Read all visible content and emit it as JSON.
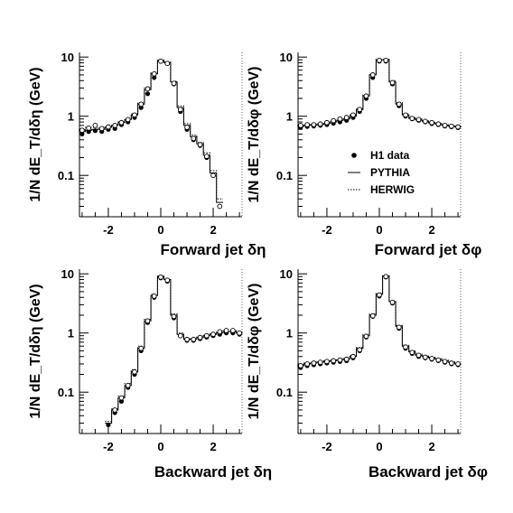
{
  "chart_data": [
    {
      "type": "scatter",
      "panel": "top-left",
      "xlabel": "Forward jet δη",
      "ylabel": "1/N dE_T/dδη (GeV)",
      "ylog": true,
      "xlim": [
        -3.1,
        3.1
      ],
      "ylim": [
        0.02,
        12
      ],
      "xticks": [
        -2,
        0,
        2
      ],
      "yticks": [
        0.1,
        1,
        10
      ],
      "x": [
        -3.0,
        -2.75,
        -2.5,
        -2.25,
        -2.0,
        -1.75,
        -1.5,
        -1.25,
        -1.0,
        -0.75,
        -0.5,
        -0.25,
        0.0,
        0.25,
        0.5,
        0.75,
        1.0,
        1.25,
        1.5,
        1.75,
        2.0,
        2.25,
        2.5
      ],
      "series": [
        {
          "name": "H1 data",
          "style": "filled-circle",
          "values": [
            0.5,
            0.55,
            0.57,
            0.55,
            0.6,
            0.62,
            0.72,
            0.8,
            0.95,
            1.4,
            2.4,
            4.5,
            8.5,
            7.8,
            3.5,
            1.2,
            0.6,
            0.4,
            0.32,
            0.2,
            0.1,
            0.03,
            null
          ]
        },
        {
          "name": "PYTHIA",
          "style": "solid-step",
          "values": [
            0.55,
            0.58,
            0.6,
            0.6,
            0.65,
            0.7,
            0.78,
            0.88,
            1.05,
            1.6,
            2.8,
            5.2,
            8.8,
            8.0,
            3.8,
            1.4,
            0.7,
            0.45,
            0.34,
            0.22,
            0.11,
            0.035,
            null
          ]
        },
        {
          "name": "HERWIG",
          "style": "dotted-step",
          "values": [
            0.6,
            0.65,
            0.65,
            0.62,
            0.68,
            0.72,
            0.8,
            0.9,
            1.1,
            1.7,
            3.0,
            5.5,
            9.0,
            8.2,
            3.9,
            1.5,
            0.75,
            0.48,
            0.36,
            0.24,
            0.12,
            0.04,
            null
          ]
        },
        {
          "name": "open",
          "style": "open-circle",
          "values": [
            0.58,
            0.63,
            0.7,
            0.62,
            0.66,
            0.7,
            0.78,
            0.88,
            1.05,
            1.6,
            2.9,
            5.2,
            8.5,
            7.8,
            3.6,
            1.3,
            0.65,
            0.42,
            0.33,
            0.21,
            0.1,
            0.03,
            null
          ]
        }
      ]
    },
    {
      "type": "scatter",
      "panel": "top-right",
      "xlabel": "Forward jet δφ",
      "ylabel": "1/N dE_T/dδφ (GeV)",
      "ylog": true,
      "xlim": [
        -3.1,
        3.1
      ],
      "ylim": [
        0.02,
        12
      ],
      "xticks": [
        -2,
        0,
        2
      ],
      "yticks": [
        0.1,
        1,
        10
      ],
      "x": [
        -3.0,
        -2.75,
        -2.5,
        -2.25,
        -2.0,
        -1.75,
        -1.5,
        -1.25,
        -1.0,
        -0.75,
        -0.5,
        -0.25,
        0.0,
        0.25,
        0.5,
        0.75,
        1.0,
        1.25,
        1.5,
        1.75,
        2.0,
        2.25,
        2.5,
        2.75,
        3.0
      ],
      "series": [
        {
          "name": "H1 data",
          "style": "filled-circle",
          "values": [
            0.65,
            0.67,
            0.68,
            0.7,
            0.72,
            0.76,
            0.8,
            0.85,
            0.95,
            1.2,
            2.0,
            4.5,
            8.5,
            8.5,
            3.5,
            1.5,
            1.0,
            0.9,
            0.85,
            0.8,
            0.75,
            0.72,
            0.68,
            0.66,
            0.64
          ]
        },
        {
          "name": "PYTHIA",
          "style": "solid-step",
          "values": [
            0.68,
            0.7,
            0.7,
            0.72,
            0.75,
            0.8,
            0.85,
            0.9,
            1.0,
            1.3,
            2.2,
            5.0,
            9.0,
            9.0,
            3.8,
            1.6,
            1.05,
            0.92,
            0.87,
            0.82,
            0.77,
            0.74,
            0.7,
            0.68,
            0.66
          ]
        },
        {
          "name": "HERWIG",
          "style": "dotted-step",
          "values": [
            0.7,
            0.72,
            0.73,
            0.75,
            0.78,
            0.82,
            0.88,
            0.93,
            1.05,
            1.35,
            2.3,
            5.2,
            9.2,
            9.2,
            4.0,
            1.7,
            1.1,
            0.95,
            0.9,
            0.84,
            0.79,
            0.75,
            0.72,
            0.7,
            0.68
          ]
        },
        {
          "name": "open",
          "style": "open-circle",
          "values": [
            0.7,
            0.72,
            0.72,
            0.74,
            0.78,
            0.84,
            0.9,
            0.95,
            1.05,
            1.3,
            2.2,
            5.0,
            8.8,
            8.8,
            3.7,
            1.6,
            1.05,
            0.92,
            0.88,
            0.82,
            0.78,
            0.74,
            0.7,
            0.68,
            0.66
          ]
        }
      ],
      "legend": {
        "position": "center-right",
        "entries": [
          "H1 data",
          "PYTHIA",
          "HERWIG"
        ]
      }
    },
    {
      "type": "scatter",
      "panel": "bottom-left",
      "xlabel": "Backward jet δη",
      "ylabel": "1/N dE_T/dδη (GeV)",
      "ylog": true,
      "xlim": [
        -3.1,
        3.1
      ],
      "ylim": [
        0.02,
        12
      ],
      "xticks": [
        -2,
        0,
        2
      ],
      "yticks": [
        0.1,
        1,
        10
      ],
      "x": [
        -2.0,
        -1.75,
        -1.5,
        -1.25,
        -1.0,
        -0.75,
        -0.5,
        -0.25,
        0.0,
        0.25,
        0.5,
        0.75,
        1.0,
        1.25,
        1.5,
        1.75,
        2.0,
        2.25,
        2.5,
        2.75,
        3.0
      ],
      "series": [
        {
          "name": "H1 data",
          "style": "filled-circle",
          "values": [
            0.028,
            0.045,
            0.07,
            0.12,
            0.2,
            0.5,
            1.5,
            4.0,
            8.5,
            7.5,
            1.8,
            0.9,
            0.75,
            0.75,
            0.8,
            0.85,
            0.9,
            0.95,
            1.0,
            1.0,
            0.95
          ]
        },
        {
          "name": "PYTHIA",
          "style": "solid-step",
          "values": [
            0.03,
            0.05,
            0.08,
            0.13,
            0.22,
            0.55,
            1.6,
            4.3,
            9.0,
            8.0,
            2.0,
            0.95,
            0.78,
            0.78,
            0.84,
            0.9,
            0.95,
            1.0,
            1.05,
            1.05,
            1.0
          ]
        },
        {
          "name": "HERWIG",
          "style": "dotted-step",
          "values": [
            0.032,
            0.052,
            0.085,
            0.14,
            0.24,
            0.6,
            1.7,
            4.5,
            9.2,
            8.2,
            2.1,
            1.0,
            0.8,
            0.8,
            0.86,
            0.92,
            0.97,
            1.05,
            1.1,
            1.1,
            1.05
          ]
        },
        {
          "name": "open",
          "style": "open-circle",
          "values": [
            null,
            0.05,
            0.08,
            0.13,
            0.22,
            0.55,
            1.6,
            4.2,
            8.8,
            7.8,
            1.9,
            0.9,
            0.78,
            0.78,
            0.84,
            0.9,
            0.95,
            1.05,
            1.1,
            1.1,
            1.0
          ]
        }
      ]
    },
    {
      "type": "scatter",
      "panel": "bottom-right",
      "xlabel": "Backward jet δφ",
      "ylabel": "1/N dE_T/dδφ (GeV)",
      "ylog": true,
      "xlim": [
        -3.1,
        3.1
      ],
      "ylim": [
        0.02,
        12
      ],
      "xticks": [
        -2,
        0,
        2
      ],
      "yticks": [
        0.1,
        1,
        10
      ],
      "x": [
        -3.0,
        -2.75,
        -2.5,
        -2.25,
        -2.0,
        -1.75,
        -1.5,
        -1.25,
        -1.0,
        -0.75,
        -0.5,
        -0.25,
        0.0,
        0.25,
        0.5,
        0.75,
        1.0,
        1.25,
        1.5,
        1.75,
        2.0,
        2.25,
        2.5,
        2.75,
        3.0
      ],
      "series": [
        {
          "name": "H1 data",
          "style": "filled-circle",
          "values": [
            0.26,
            0.28,
            0.29,
            0.3,
            0.31,
            0.32,
            0.33,
            0.34,
            0.38,
            0.5,
            0.85,
            1.9,
            4.2,
            8.8,
            3.2,
            1.2,
            0.55,
            0.45,
            0.4,
            0.38,
            0.36,
            0.34,
            0.32,
            0.3,
            0.29
          ]
        },
        {
          "name": "PYTHIA",
          "style": "solid-step",
          "values": [
            0.28,
            0.3,
            0.31,
            0.32,
            0.33,
            0.34,
            0.35,
            0.36,
            0.4,
            0.55,
            0.9,
            2.0,
            4.5,
            9.2,
            3.4,
            1.3,
            0.6,
            0.48,
            0.42,
            0.4,
            0.38,
            0.36,
            0.34,
            0.32,
            0.3
          ]
        },
        {
          "name": "HERWIG",
          "style": "dotted-step",
          "values": [
            0.29,
            0.31,
            0.32,
            0.33,
            0.34,
            0.35,
            0.36,
            0.38,
            0.42,
            0.57,
            0.95,
            2.1,
            4.7,
            9.5,
            3.5,
            1.35,
            0.62,
            0.5,
            0.44,
            0.41,
            0.39,
            0.37,
            0.35,
            0.33,
            0.31
          ]
        },
        {
          "name": "open",
          "style": "open-circle",
          "values": [
            0.28,
            0.3,
            0.31,
            0.32,
            0.33,
            0.34,
            0.35,
            0.36,
            0.4,
            0.52,
            0.88,
            1.95,
            4.4,
            9.0,
            3.3,
            1.25,
            0.58,
            0.47,
            0.42,
            0.39,
            0.37,
            0.35,
            0.33,
            0.31,
            0.3
          ]
        }
      ]
    }
  ]
}
